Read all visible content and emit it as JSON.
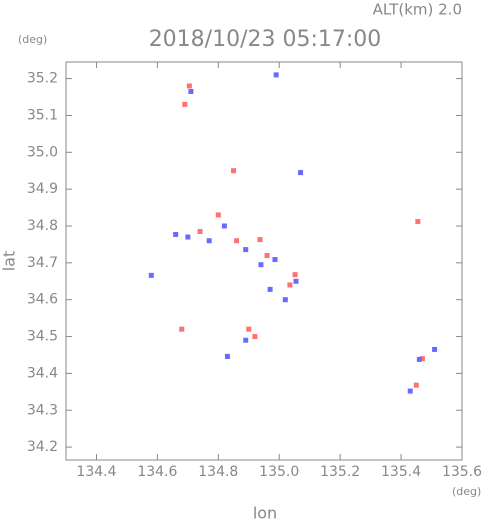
{
  "chart_data": {
    "type": "scatter",
    "title": "2018/10/23 05:17:00",
    "annotation": "ALT(km) 2.0",
    "y_unit": "(deg)",
    "x_unit": "(deg)",
    "x_label": "lon",
    "y_label": "lat",
    "xlim": [
      134.3,
      135.6
    ],
    "ylim": [
      34.165,
      35.245
    ],
    "xticks": [
      134.4,
      134.6,
      134.8,
      {
        "value": 135,
        "label": "135.0"
      },
      135.2,
      135.4,
      135.6
    ],
    "yticks": [
      34.2,
      34.3,
      34.4,
      34.5,
      34.6,
      34.7,
      34.8,
      34.9,
      {
        "value": 35,
        "label": "35.0"
      },
      35.1,
      35.2
    ],
    "series": [
      {
        "color": "#ff7070",
        "x": [
          134.705,
          134.69,
          134.85,
          134.8,
          134.74,
          134.937,
          135.052,
          134.9,
          134.92,
          134.68,
          135.455,
          135.45,
          135.035,
          134.86,
          134.96,
          135.47
        ],
        "y": [
          35.18,
          35.13,
          34.95,
          34.83,
          34.785,
          34.763,
          34.668,
          34.52,
          34.5,
          34.52,
          34.812,
          34.368,
          34.64,
          34.76,
          34.72,
          34.44
        ]
      },
      {
        "color": "#6a6aff",
        "x": [
          134.71,
          134.99,
          135.07,
          134.66,
          134.82,
          134.89,
          134.986,
          134.94,
          134.97,
          135.02,
          134.89,
          134.83,
          134.58,
          135.46,
          135.51,
          135.43,
          134.77,
          135.055,
          134.7
        ],
        "y": [
          35.165,
          35.21,
          34.945,
          34.777,
          34.8,
          34.736,
          34.709,
          34.695,
          34.628,
          34.6,
          34.49,
          34.446,
          34.666,
          34.438,
          34.465,
          34.352,
          34.76,
          34.65,
          34.77
        ]
      }
    ]
  }
}
